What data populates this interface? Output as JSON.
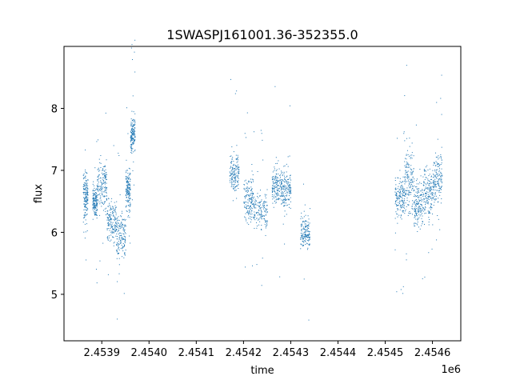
{
  "chart_data": {
    "type": "scatter",
    "title": "1SWASPJ161001.36-352355.0",
    "xlabel": "time",
    "ylabel": "flux",
    "x_offset_label": "1e6",
    "xlim": [
      2.45382,
      2.45466
    ],
    "ylim": [
      4.25,
      9.0
    ],
    "x_ticks": [
      2.4539,
      2.454,
      2.4541,
      2.4542,
      2.4543,
      2.4544,
      2.4545,
      2.4546
    ],
    "x_tick_labels": [
      "2.4539",
      "2.4540",
      "2.4541",
      "2.4542",
      "2.4543",
      "2.4544",
      "2.4545",
      "2.4546"
    ],
    "y_ticks": [
      5,
      6,
      7,
      8
    ],
    "y_tick_labels": [
      "5",
      "6",
      "7",
      "8"
    ],
    "grid": false,
    "point_color": "#1f77b4",
    "segments": [
      {
        "x_start": 2.45386,
        "x_end": 2.45387,
        "y_center": 6.6,
        "y_spread": 0.35
      },
      {
        "x_start": 2.45388,
        "x_end": 2.45389,
        "y_center": 6.5,
        "y_spread": 0.25
      },
      {
        "x_start": 2.45389,
        "x_end": 2.45391,
        "y_center": 6.75,
        "y_spread": 0.4
      },
      {
        "x_start": 2.45391,
        "x_end": 2.45393,
        "y_center": 6.2,
        "y_spread": 0.35
      },
      {
        "x_start": 2.45393,
        "x_end": 2.45395,
        "y_center": 5.95,
        "y_spread": 0.35
      },
      {
        "x_start": 2.45395,
        "x_end": 2.45396,
        "y_center": 6.7,
        "y_spread": 0.35
      },
      {
        "x_start": 2.45396,
        "x_end": 2.45397,
        "y_center": 7.6,
        "y_spread": 0.3
      },
      {
        "x_start": 2.45417,
        "x_end": 2.45419,
        "y_center": 6.95,
        "y_spread": 0.3
      },
      {
        "x_start": 2.4542,
        "x_end": 2.45422,
        "y_center": 6.55,
        "y_spread": 0.35
      },
      {
        "x_start": 2.45422,
        "x_end": 2.45425,
        "y_center": 6.35,
        "y_spread": 0.3
      },
      {
        "x_start": 2.45426,
        "x_end": 2.45428,
        "y_center": 6.75,
        "y_spread": 0.3
      },
      {
        "x_start": 2.45428,
        "x_end": 2.4543,
        "y_center": 6.7,
        "y_spread": 0.35
      },
      {
        "x_start": 2.45432,
        "x_end": 2.45434,
        "y_center": 6.0,
        "y_spread": 0.25
      },
      {
        "x_start": 2.45452,
        "x_end": 2.45454,
        "y_center": 6.55,
        "y_spread": 0.3
      },
      {
        "x_start": 2.45454,
        "x_end": 2.45456,
        "y_center": 6.85,
        "y_spread": 0.5
      },
      {
        "x_start": 2.45456,
        "x_end": 2.45458,
        "y_center": 6.45,
        "y_spread": 0.4
      },
      {
        "x_start": 2.45458,
        "x_end": 2.4546,
        "y_center": 6.65,
        "y_spread": 0.4
      },
      {
        "x_start": 2.4546,
        "x_end": 2.45462,
        "y_center": 6.9,
        "y_spread": 0.45
      }
    ]
  }
}
